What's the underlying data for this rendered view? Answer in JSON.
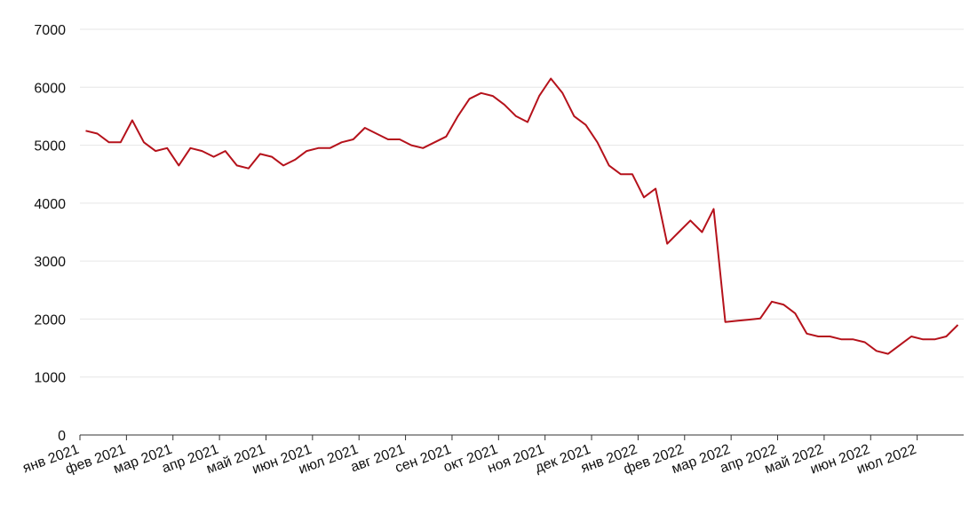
{
  "chart_data": {
    "type": "line",
    "color": "#b5121b",
    "grid": true,
    "x": [
      "2021-01",
      "2021-01",
      "2021-01",
      "2021-01",
      "2021-02",
      "2021-02",
      "2021-02",
      "2021-02",
      "2021-03",
      "2021-03",
      "2021-03",
      "2021-03",
      "2021-04",
      "2021-04",
      "2021-04",
      "2021-04",
      "2021-05",
      "2021-05",
      "2021-05",
      "2021-05",
      "2021-06",
      "2021-06",
      "2021-06",
      "2021-06",
      "2021-07",
      "2021-07",
      "2021-07",
      "2021-07",
      "2021-08",
      "2021-08",
      "2021-08",
      "2021-08",
      "2021-09",
      "2021-09",
      "2021-09",
      "2021-09",
      "2021-10",
      "2021-10",
      "2021-10",
      "2021-10",
      "2021-11",
      "2021-11",
      "2021-11",
      "2021-11",
      "2021-12",
      "2021-12",
      "2021-12",
      "2021-12",
      "2022-01",
      "2022-01",
      "2022-01",
      "2022-01",
      "2022-02",
      "2022-02",
      "2022-02",
      "2022-02",
      "2022-03",
      "2022-03",
      "2022-03",
      "2022-03",
      "2022-04",
      "2022-04",
      "2022-04",
      "2022-04",
      "2022-05",
      "2022-05",
      "2022-05",
      "2022-05",
      "2022-06",
      "2022-06",
      "2022-06",
      "2022-06",
      "2022-07",
      "2022-07",
      "2022-07",
      "2022-07"
    ],
    "values": [
      5250,
      5200,
      5050,
      5050,
      5430,
      5050,
      4900,
      4950,
      4650,
      4950,
      4900,
      4800,
      4900,
      4650,
      4600,
      4850,
      4800,
      4650,
      4750,
      4900,
      4950,
      4950,
      5050,
      5100,
      5300,
      5200,
      5100,
      5100,
      5000,
      4950,
      5050,
      5150,
      5500,
      5800,
      5900,
      5850,
      5700,
      5500,
      5400,
      5850,
      6150,
      5900,
      5500,
      5350,
      5050,
      4650,
      4500,
      4500,
      4100,
      4250,
      3300,
      3500,
      3700,
      3500,
      3900,
      1950,
      1970,
      1990,
      2010,
      2300,
      2250,
      2100,
      1750,
      1700,
      1700,
      1650,
      1650,
      1600,
      1450,
      1400,
      1550,
      1700,
      1650,
      1650,
      1700,
      1900
    ],
    "xlim": [
      "2021-01",
      "2022-07"
    ],
    "xticks": [
      {
        "value": "2021-01",
        "label": "янв 2021"
      },
      {
        "value": "2021-02",
        "label": "фев 2021"
      },
      {
        "value": "2021-03",
        "label": "мар 2021"
      },
      {
        "value": "2021-04",
        "label": "апр 2021"
      },
      {
        "value": "2021-05",
        "label": "май 2021"
      },
      {
        "value": "2021-06",
        "label": "июн 2021"
      },
      {
        "value": "2021-07",
        "label": "июл 2021"
      },
      {
        "value": "2021-08",
        "label": "авг 2021"
      },
      {
        "value": "2021-09",
        "label": "сен 2021"
      },
      {
        "value": "2021-10",
        "label": "окт 2021"
      },
      {
        "value": "2021-11",
        "label": "ноя 2021"
      },
      {
        "value": "2021-12",
        "label": "дек 2021"
      },
      {
        "value": "2022-01",
        "label": "янв 2022"
      },
      {
        "value": "2022-02",
        "label": "фев 2022"
      },
      {
        "value": "2022-03",
        "label": "мар 2022"
      },
      {
        "value": "2022-04",
        "label": "апр 2022"
      },
      {
        "value": "2022-05",
        "label": "май 2022"
      },
      {
        "value": "2022-06",
        "label": "июн 2022"
      },
      {
        "value": "2022-07",
        "label": "июл 2022"
      }
    ],
    "ylim": [
      0,
      7000
    ],
    "yticks": [
      0,
      1000,
      2000,
      3000,
      4000,
      5000,
      6000,
      7000
    ]
  }
}
